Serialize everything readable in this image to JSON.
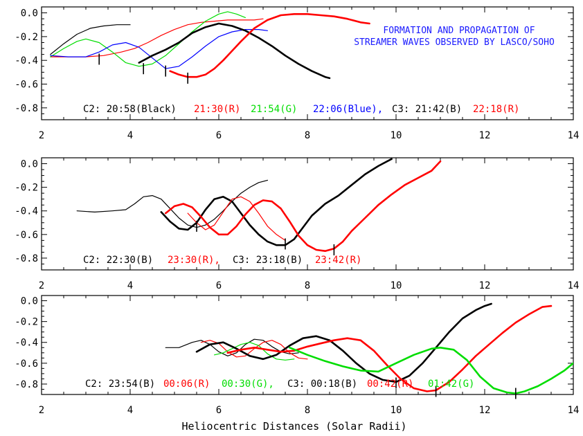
{
  "figure": {
    "xlabel": "Heliocentric Distances (Solar Radii)",
    "title_lines": [
      "FORMATION AND PROPAGATION OF",
      "STREAMER WAVES OBSERVED BY LASCO/SOHO"
    ]
  },
  "chart_data": [
    {
      "type": "line",
      "panel": "top",
      "xlim": [
        2,
        14
      ],
      "ylim": [
        -0.9,
        0.05
      ],
      "xticks": [
        2,
        4,
        6,
        8,
        10,
        12,
        14
      ],
      "yticks": [
        0.0,
        -0.2,
        -0.4,
        -0.6,
        -0.8
      ],
      "xtick_labels": [
        "2",
        "4",
        "6",
        "8",
        "10",
        "12",
        "14"
      ],
      "ytick_labels": [
        "0.0",
        "-0.2",
        "-0.4",
        "-0.6",
        "-0.8"
      ],
      "legend": [
        {
          "text": "C2: 20:58(Black)",
          "color": "#000000"
        },
        {
          "text": "21:30(R)",
          "color": "#ff0000"
        },
        {
          "text": "21:54(G)",
          "color": "#00dd00"
        },
        {
          "text": "22:06(Blue),",
          "color": "#0000ff"
        },
        {
          "text": "C3: 21:42(B)",
          "color": "#000000"
        },
        {
          "text": "22:18(R)",
          "color": "#ff0000"
        }
      ],
      "series": [
        {
          "color": "#000000",
          "width": 1.2,
          "x": [
            2.2,
            2.5,
            2.8,
            3.1,
            3.4,
            3.7,
            4.0
          ],
          "y": [
            -0.35,
            -0.26,
            -0.18,
            -0.13,
            -0.11,
            -0.1,
            -0.1
          ]
        },
        {
          "color": "#ff0000",
          "width": 1.2,
          "x": [
            2.2,
            2.6,
            3.0,
            3.4,
            3.8,
            4.1,
            4.4,
            4.7,
            5.0,
            5.3,
            5.6,
            5.9,
            6.2,
            6.5,
            6.8,
            7.0
          ],
          "y": [
            -0.37,
            -0.37,
            -0.37,
            -0.36,
            -0.33,
            -0.3,
            -0.25,
            -0.19,
            -0.14,
            -0.1,
            -0.08,
            -0.07,
            -0.06,
            -0.06,
            -0.06,
            -0.05
          ]
        },
        {
          "color": "#00dd00",
          "width": 1.2,
          "x": [
            2.2,
            2.5,
            2.8,
            3.0,
            3.3,
            3.6,
            3.9,
            4.2,
            4.5,
            4.8,
            5.1,
            5.4,
            5.7,
            6.0,
            6.2,
            6.4,
            6.6
          ],
          "y": [
            -0.37,
            -0.3,
            -0.24,
            -0.22,
            -0.25,
            -0.33,
            -0.42,
            -0.45,
            -0.43,
            -0.36,
            -0.26,
            -0.16,
            -0.07,
            -0.01,
            0.01,
            -0.01,
            -0.04
          ]
        },
        {
          "color": "#0000ff",
          "width": 1.2,
          "x": [
            2.2,
            2.6,
            3.0,
            3.3,
            3.6,
            3.9,
            4.2,
            4.5,
            4.8,
            5.1,
            5.4,
            5.7,
            6.0,
            6.3,
            6.6,
            6.9,
            7.1
          ],
          "y": [
            -0.36,
            -0.37,
            -0.37,
            -0.33,
            -0.27,
            -0.25,
            -0.29,
            -0.38,
            -0.47,
            -0.45,
            -0.37,
            -0.28,
            -0.2,
            -0.16,
            -0.14,
            -0.14,
            -0.15
          ]
        },
        {
          "color": "#000000",
          "width": 2.6,
          "x": [
            4.2,
            4.5,
            4.8,
            5.1,
            5.4,
            5.7,
            6.0,
            6.3,
            6.6,
            6.9,
            7.2,
            7.5,
            7.8,
            8.1,
            8.4,
            8.5
          ],
          "y": [
            -0.42,
            -0.36,
            -0.31,
            -0.25,
            -0.17,
            -0.12,
            -0.09,
            -0.11,
            -0.15,
            -0.21,
            -0.28,
            -0.36,
            -0.43,
            -0.49,
            -0.54,
            -0.55
          ]
        },
        {
          "color": "#ff0000",
          "width": 2.6,
          "x": [
            4.9,
            5.1,
            5.3,
            5.5,
            5.7,
            5.9,
            6.1,
            6.3,
            6.5,
            6.8,
            7.1,
            7.4,
            7.7,
            8.0,
            8.3,
            8.6,
            8.9,
            9.2,
            9.4
          ],
          "y": [
            -0.49,
            -0.52,
            -0.54,
            -0.54,
            -0.52,
            -0.47,
            -0.4,
            -0.32,
            -0.24,
            -0.13,
            -0.06,
            -0.02,
            -0.01,
            -0.01,
            -0.02,
            -0.03,
            -0.05,
            -0.08,
            -0.09
          ]
        }
      ],
      "markers": [
        [
          3.3,
          -0.39
        ],
        [
          4.3,
          -0.47
        ],
        [
          4.8,
          -0.49
        ],
        [
          5.3,
          -0.55
        ]
      ]
    },
    {
      "type": "line",
      "panel": "middle",
      "xlim": [
        2,
        14
      ],
      "ylim": [
        -0.9,
        0.05
      ],
      "xticks": [
        2,
        4,
        6,
        8,
        10,
        12,
        14
      ],
      "yticks": [
        0.0,
        -0.2,
        -0.4,
        -0.6,
        -0.8
      ],
      "xtick_labels": [
        "2",
        "4",
        "6",
        "8",
        "10",
        "12",
        "14"
      ],
      "ytick_labels": [
        "0.0",
        "-0.2",
        "-0.4",
        "-0.6",
        "-0.8"
      ],
      "legend": [
        {
          "text": "C2: 22:30(B)",
          "color": "#000000"
        },
        {
          "text": "23:30(R),",
          "color": "#ff0000"
        },
        {
          "text": "C3: 23:18(B)",
          "color": "#000000"
        },
        {
          "text": "23:42(R)",
          "color": "#ff0000"
        }
      ],
      "series": [
        {
          "color": "#000000",
          "width": 1.2,
          "x": [
            2.8,
            3.2,
            3.6,
            3.9,
            4.1,
            4.3,
            4.5,
            4.7,
            4.9,
            5.1,
            5.3,
            5.5,
            5.7,
            5.9,
            6.1,
            6.3,
            6.5,
            6.7,
            6.9,
            7.1
          ],
          "y": [
            -0.4,
            -0.41,
            -0.4,
            -0.39,
            -0.34,
            -0.28,
            -0.27,
            -0.3,
            -0.38,
            -0.46,
            -0.52,
            -0.54,
            -0.52,
            -0.47,
            -0.4,
            -0.32,
            -0.25,
            -0.2,
            -0.16,
            -0.14
          ]
        },
        {
          "color": "#000000",
          "width": 2.6,
          "x": [
            4.7,
            4.9,
            5.1,
            5.3,
            5.5,
            5.7,
            5.9,
            6.1,
            6.3,
            6.5,
            6.7,
            6.9,
            7.1,
            7.3,
            7.5,
            7.7,
            7.9,
            8.1,
            8.4,
            8.7,
            9.0,
            9.3,
            9.6,
            9.9
          ],
          "y": [
            -0.41,
            -0.49,
            -0.55,
            -0.56,
            -0.5,
            -0.39,
            -0.3,
            -0.28,
            -0.32,
            -0.42,
            -0.52,
            -0.6,
            -0.66,
            -0.69,
            -0.69,
            -0.64,
            -0.54,
            -0.44,
            -0.34,
            -0.27,
            -0.18,
            -0.09,
            -0.02,
            0.04
          ]
        },
        {
          "color": "#ff0000",
          "width": 1.2,
          "x": [
            5.3,
            5.5,
            5.7,
            5.9,
            6.1,
            6.3,
            6.5,
            6.7,
            6.9,
            7.1,
            7.3,
            7.5
          ],
          "y": [
            -0.42,
            -0.5,
            -0.56,
            -0.52,
            -0.41,
            -0.3,
            -0.28,
            -0.32,
            -0.42,
            -0.53,
            -0.6,
            -0.65
          ]
        },
        {
          "color": "#ff0000",
          "width": 2.6,
          "x": [
            4.8,
            5.0,
            5.2,
            5.4,
            5.6,
            5.8,
            6.0,
            6.2,
            6.4,
            6.6,
            6.8,
            7.0,
            7.2,
            7.4,
            7.6,
            7.8,
            8.0,
            8.2,
            8.4,
            8.6,
            8.8,
            9.0,
            9.3,
            9.6,
            9.9,
            10.2,
            10.5,
            10.8,
            11.0
          ],
          "y": [
            -0.42,
            -0.36,
            -0.34,
            -0.37,
            -0.45,
            -0.54,
            -0.6,
            -0.6,
            -0.53,
            -0.43,
            -0.35,
            -0.31,
            -0.32,
            -0.38,
            -0.49,
            -0.61,
            -0.69,
            -0.73,
            -0.74,
            -0.72,
            -0.66,
            -0.57,
            -0.46,
            -0.35,
            -0.26,
            -0.18,
            -0.12,
            -0.06,
            0.02
          ]
        }
      ],
      "markers": [
        [
          5.5,
          -0.53
        ],
        [
          7.5,
          -0.68
        ],
        [
          8.6,
          -0.73
        ]
      ]
    },
    {
      "type": "line",
      "panel": "bottom",
      "xlim": [
        2,
        14
      ],
      "ylim": [
        -0.9,
        0.05
      ],
      "xticks": [
        2,
        4,
        6,
        8,
        10,
        12,
        14
      ],
      "yticks": [
        0.0,
        -0.2,
        -0.4,
        -0.6,
        -0.8
      ],
      "xtick_labels": [
        "2",
        "4",
        "6",
        "8",
        "10",
        "12",
        "14"
      ],
      "ytick_labels": [
        "0.0",
        "-0.2",
        "-0.4",
        "-0.6",
        "-0.8"
      ],
      "legend": [
        {
          "text": "C2: 23:54(B)",
          "color": "#000000"
        },
        {
          "text": "00:06(R)",
          "color": "#ff0000"
        },
        {
          "text": "00:30(G),",
          "color": "#00dd00"
        },
        {
          "text": "C3: 00:18(B)",
          "color": "#000000"
        },
        {
          "text": "00:42(R)",
          "color": "#ff0000"
        },
        {
          "text": "01:42(G)",
          "color": "#00dd00"
        }
      ],
      "series": [
        {
          "color": "#000000",
          "width": 1.2,
          "x": [
            4.8,
            5.1,
            5.4,
            5.6,
            5.8,
            6.0,
            6.2,
            6.4,
            6.6,
            6.8,
            7.0,
            7.2,
            7.4,
            7.6,
            7.8
          ],
          "y": [
            -0.45,
            -0.45,
            -0.4,
            -0.38,
            -0.42,
            -0.49,
            -0.53,
            -0.5,
            -0.42,
            -0.37,
            -0.38,
            -0.44,
            -0.49,
            -0.51,
            -0.5
          ]
        },
        {
          "color": "#ff0000",
          "width": 1.2,
          "x": [
            5.6,
            5.8,
            6.0,
            6.2,
            6.4,
            6.6,
            6.8,
            7.0,
            7.2,
            7.4,
            7.6,
            7.8,
            8.0
          ],
          "y": [
            -0.4,
            -0.38,
            -0.41,
            -0.49,
            -0.54,
            -0.53,
            -0.46,
            -0.4,
            -0.38,
            -0.42,
            -0.5,
            -0.55,
            -0.56
          ]
        },
        {
          "color": "#00dd00",
          "width": 1.2,
          "x": [
            5.9,
            6.1,
            6.3,
            6.5,
            6.7,
            6.9,
            7.1,
            7.3,
            7.5,
            7.7
          ],
          "y": [
            -0.52,
            -0.5,
            -0.46,
            -0.42,
            -0.4,
            -0.43,
            -0.51,
            -0.56,
            -0.57,
            -0.56
          ]
        },
        {
          "color": "#000000",
          "width": 2.6,
          "x": [
            5.5,
            5.8,
            6.1,
            6.4,
            6.7,
            7.0,
            7.3,
            7.6,
            7.9,
            8.2,
            8.5,
            8.8,
            9.1,
            9.4,
            9.7,
            10.0,
            10.3,
            10.6,
            10.9,
            11.2,
            11.5,
            11.8,
            12.0,
            12.15
          ],
          "y": [
            -0.49,
            -0.42,
            -0.4,
            -0.46,
            -0.53,
            -0.56,
            -0.52,
            -0.43,
            -0.36,
            -0.34,
            -0.38,
            -0.48,
            -0.6,
            -0.7,
            -0.76,
            -0.78,
            -0.72,
            -0.6,
            -0.45,
            -0.3,
            -0.17,
            -0.09,
            -0.05,
            -0.03
          ]
        },
        {
          "color": "#ff0000",
          "width": 2.6,
          "x": [
            6.2,
            6.5,
            6.8,
            7.1,
            7.4,
            7.7,
            8.0,
            8.3,
            8.6,
            8.9,
            9.2,
            9.5,
            9.8,
            10.1,
            10.4,
            10.7,
            10.9,
            11.2,
            11.5,
            11.8,
            12.1,
            12.4,
            12.7,
            13.0,
            13.3,
            13.5
          ],
          "y": [
            -0.5,
            -0.47,
            -0.45,
            -0.47,
            -0.49,
            -0.48,
            -0.44,
            -0.41,
            -0.38,
            -0.36,
            -0.38,
            -0.48,
            -0.62,
            -0.75,
            -0.84,
            -0.87,
            -0.86,
            -0.78,
            -0.66,
            -0.53,
            -0.42,
            -0.31,
            -0.21,
            -0.13,
            -0.06,
            -0.05
          ]
        },
        {
          "color": "#00dd00",
          "width": 2.6,
          "x": [
            7.6,
            8.0,
            8.4,
            8.8,
            9.2,
            9.6,
            10.0,
            10.4,
            10.8,
            11.0,
            11.3,
            11.6,
            11.9,
            12.2,
            12.5,
            12.7,
            12.9,
            13.2,
            13.5,
            13.8,
            14.0
          ],
          "y": [
            -0.45,
            -0.52,
            -0.58,
            -0.63,
            -0.67,
            -0.68,
            -0.6,
            -0.52,
            -0.46,
            -0.45,
            -0.47,
            -0.57,
            -0.73,
            -0.84,
            -0.88,
            -0.89,
            -0.87,
            -0.82,
            -0.75,
            -0.67,
            -0.6
          ]
        }
      ],
      "markers": [
        [
          10.0,
          -0.79
        ],
        [
          10.9,
          -0.87
        ],
        [
          12.7,
          -0.89
        ]
      ]
    }
  ]
}
